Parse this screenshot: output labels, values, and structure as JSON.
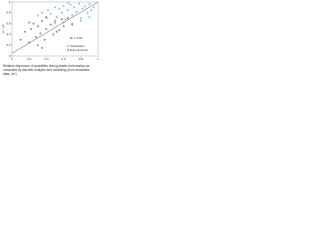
{
  "chart_data": {
    "type": "scatter",
    "y_label": "γL / γ0",
    "annotation": "R² = 0.83",
    "caption": "Relative dispersion of quantities during plastic deformation as computed by discrete analysis and modelling (from simulation data, ref.)",
    "xlim": [
      0,
      1
    ],
    "ylim": [
      0,
      1
    ],
    "xticks": [
      0,
      0.2,
      0.4,
      0.6,
      0.8,
      1
    ],
    "yticks": [
      0,
      0.2,
      0.4,
      0.6,
      0.8,
      1
    ],
    "legend": "lower right",
    "reference_line": {
      "x": [
        0,
        1
      ],
      "y": [
        0.05,
        1
      ],
      "color": "#555"
    },
    "series": [
      {
        "name": "Calculation",
        "color": "#7ec8e3",
        "x": [
          0.3,
          0.35,
          0.4,
          0.42,
          0.45,
          0.5,
          0.52,
          0.55,
          0.58,
          0.6,
          0.62,
          0.65,
          0.68,
          0.7,
          0.72,
          0.75,
          0.78,
          0.8,
          0.82,
          0.85,
          0.88,
          0.9,
          0.92,
          0.95,
          0.6,
          0.7,
          0.8,
          0.9,
          0.5,
          0.65
        ],
        "y": [
          0.75,
          0.8,
          0.7,
          0.85,
          0.78,
          0.9,
          0.72,
          0.88,
          0.8,
          0.93,
          0.68,
          0.85,
          0.95,
          0.75,
          0.9,
          0.82,
          0.97,
          0.7,
          0.88,
          0.92,
          0.8,
          0.96,
          0.85,
          0.9,
          0.62,
          0.6,
          0.65,
          0.72,
          0.66,
          0.98
        ]
      },
      {
        "name": "Experimental",
        "color": "#8c8c8c",
        "x": [
          0.1,
          0.15,
          0.2,
          0.22,
          0.25,
          0.28,
          0.3,
          0.33,
          0.35,
          0.38,
          0.4,
          0.45,
          0.48,
          0.5,
          0.55,
          0.6,
          0.65,
          0.7,
          0.2,
          0.3,
          0.4,
          0.52,
          0.58,
          0.35
        ],
        "y": [
          0.3,
          0.45,
          0.25,
          0.5,
          0.6,
          0.35,
          0.55,
          0.42,
          0.65,
          0.3,
          0.5,
          0.58,
          0.4,
          0.62,
          0.48,
          0.55,
          0.7,
          0.58,
          0.62,
          0.2,
          0.72,
          0.45,
          0.68,
          0.15
        ]
      }
    ]
  }
}
